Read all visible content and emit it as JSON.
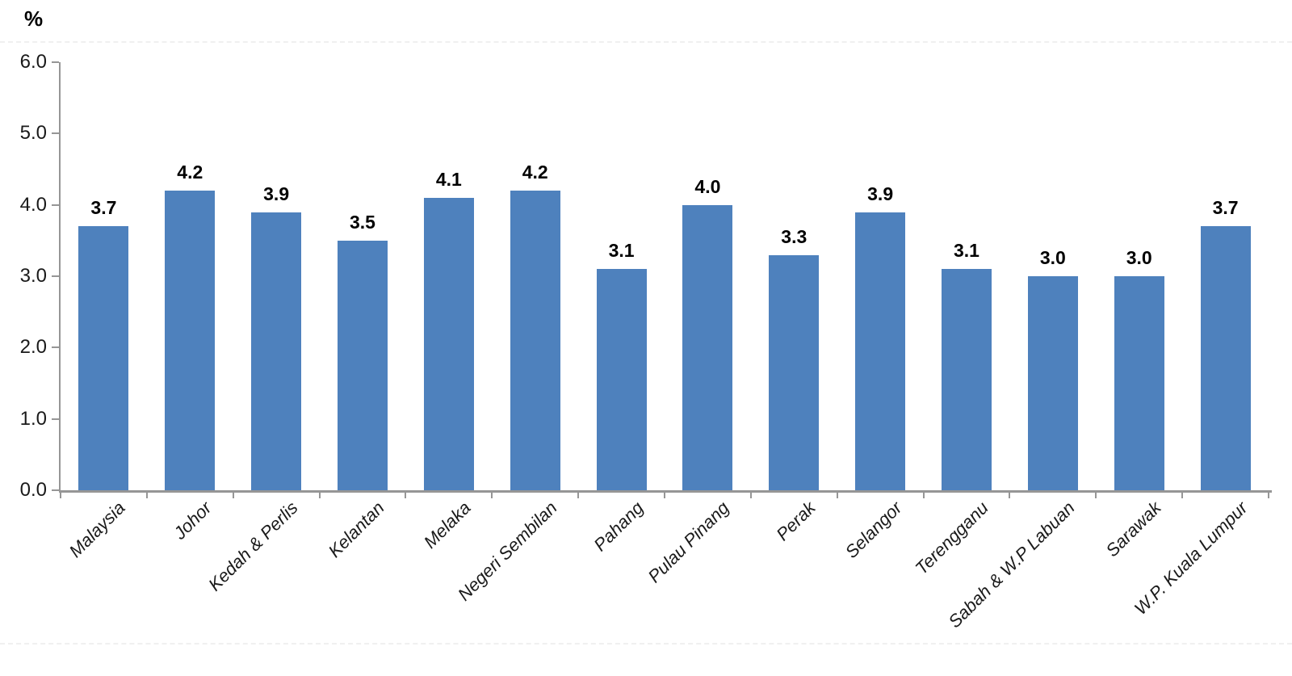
{
  "chart_data": {
    "type": "bar",
    "title": "",
    "xlabel": "",
    "ylabel": "%",
    "categories": [
      "Malaysia",
      "Johor",
      "Kedah & Perlis",
      "Kelantan",
      "Melaka",
      "Negeri Sembilan",
      "Pahang",
      "Pulau Pinang",
      "Perak",
      "Selangor",
      "Terengganu",
      "Sabah & W.P Labuan",
      "Sarawak",
      "W.P. Kuala Lumpur"
    ],
    "values": [
      3.7,
      4.2,
      3.9,
      3.5,
      4.1,
      4.2,
      3.1,
      4.0,
      3.3,
      3.9,
      3.1,
      3.0,
      3.0,
      3.7
    ],
    "value_labels": [
      "3.7",
      "4.2",
      "3.9",
      "3.5",
      "4.1",
      "4.2",
      "3.1",
      "4.0",
      "3.3",
      "3.9",
      "3.1",
      "3.0",
      "3.0",
      "3.7"
    ],
    "ylim": [
      0,
      6
    ],
    "ytick_labels": [
      "0.0",
      "1.0",
      "2.0",
      "3.0",
      "4.0",
      "5.0",
      "6.0"
    ],
    "grid": false,
    "legend": "none",
    "bar_color": "#4E81BD",
    "axis_color": "#969696",
    "value_label_color": "#000000",
    "tick_label_color": "#1a1a1a"
  }
}
